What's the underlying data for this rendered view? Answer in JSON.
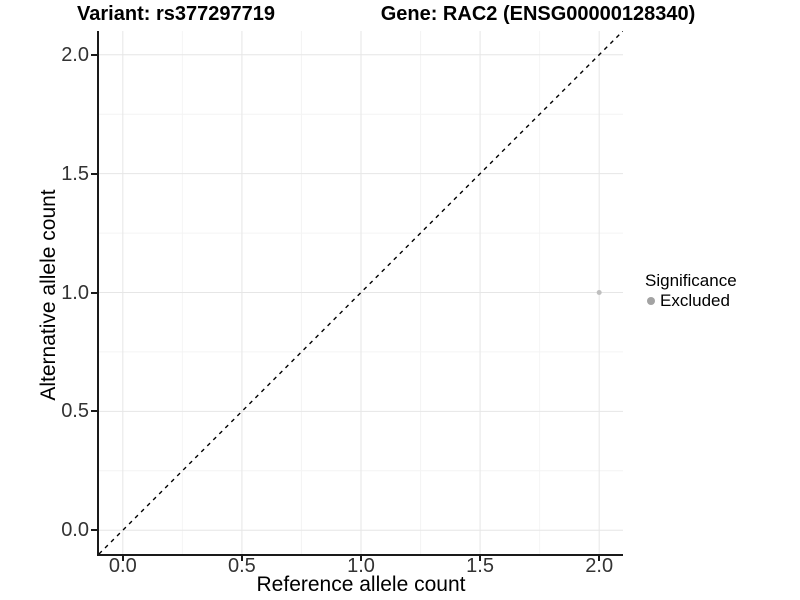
{
  "header": {
    "variant_title": "Variant: rs377297719",
    "gene_title": "Gene: RAC2 (ENSG00000128340)"
  },
  "chart_data": {
    "type": "scatter",
    "title": "Variant: rs377297719 | Gene: RAC2 (ENSG00000128340)",
    "xlabel": "Reference allele count",
    "ylabel": "Alternative allele count",
    "xlim": [
      -0.1,
      2.1
    ],
    "ylim": [
      -0.1,
      2.1
    ],
    "x_ticks": {
      "labels": [
        "0.0",
        "0.5",
        "1.0",
        "1.5",
        "2.0"
      ],
      "values": [
        0,
        0.5,
        1,
        1.5,
        2
      ]
    },
    "y_ticks": {
      "labels": [
        "0.0",
        "0.5",
        "1.0",
        "1.5",
        "2.0"
      ],
      "values": [
        0,
        0.5,
        1,
        1.5,
        2
      ]
    },
    "x_minor": [
      0.25,
      0.75,
      1.25,
      1.75
    ],
    "y_minor": [
      0.25,
      0.75,
      1.25,
      1.75
    ],
    "grid": {
      "major_color": "#e6e6e6",
      "minor_color": "#f4f4f4",
      "major_width": 1,
      "minor_width": 1
    },
    "reference_line": {
      "style": "dashed",
      "color": "#000000",
      "width": 1.4,
      "from": [
        -0.1,
        -0.1
      ],
      "to": [
        2.1,
        2.1
      ]
    },
    "series": [
      {
        "name": "Excluded",
        "color": "#bfbfbf",
        "point_radius": 2.5,
        "points": [
          [
            2.0,
            1.0
          ]
        ]
      }
    ],
    "legend": {
      "title": "Significance",
      "position": "right",
      "items": [
        {
          "label": "Excluded",
          "swatch_color": "#a3a3a3"
        }
      ]
    },
    "panel": {
      "background": "#ffffff",
      "axis_color": "#1a1a1a"
    }
  }
}
